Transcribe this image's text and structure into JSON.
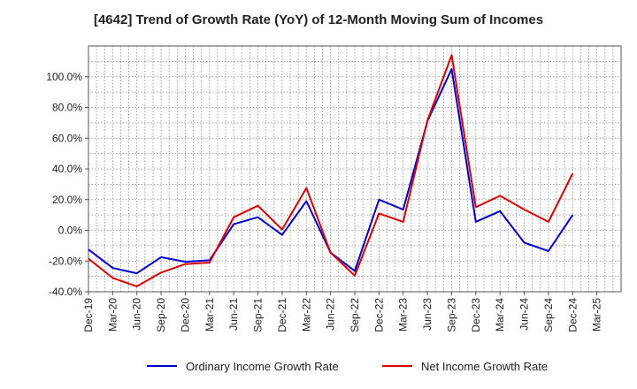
{
  "chart_data": {
    "type": "line",
    "title": "[4642]  Trend of Growth Rate (YoY) of 12-Month Moving Sum of Incomes",
    "xlabel": "",
    "ylabel": "",
    "ylim": [
      -40,
      120
    ],
    "y_ticks": [
      -40,
      -20,
      0,
      20,
      40,
      60,
      80,
      100
    ],
    "y_tick_labels": [
      "-40.0%",
      "-20.0%",
      "0.0%",
      "20.0%",
      "40.0%",
      "60.0%",
      "80.0%",
      "100.0%"
    ],
    "x_tick_labels": [
      "Dec-19",
      "Mar-20",
      "Jun-20",
      "Sep-20",
      "Dec-20",
      "Mar-21",
      "Jun-21",
      "Sep-21",
      "Dec-21",
      "Mar-22",
      "Jun-22",
      "Sep-22",
      "Dec-22",
      "Mar-23",
      "Jun-23",
      "Sep-23",
      "Dec-23",
      "Mar-24",
      "Jun-24",
      "Sep-24",
      "Dec-24",
      "Mar-25"
    ],
    "categories": [
      "Dec-19",
      "Mar-20",
      "Jun-20",
      "Sep-20",
      "Dec-20",
      "Mar-21",
      "Jun-21",
      "Sep-21",
      "Dec-21",
      "Mar-22",
      "Jun-22",
      "Sep-22",
      "Dec-22",
      "Mar-23",
      "Jun-23",
      "Sep-23",
      "Dec-23",
      "Mar-24",
      "Jun-24",
      "Sep-24",
      "Dec-24"
    ],
    "grid": true,
    "legend_position": "bottom",
    "series": [
      {
        "name": "Ordinary Income Growth Rate",
        "color": "#0000cc",
        "values": [
          -12.5,
          -24.5,
          -28,
          -17.5,
          -20.5,
          -19.5,
          4,
          8.5,
          -3,
          19,
          -14.5,
          -26.5,
          20,
          13.5,
          71,
          105,
          5.5,
          12.5,
          -8,
          -13.5,
          10
        ]
      },
      {
        "name": "Net Income Growth Rate",
        "color": "#dd0000",
        "values": [
          -18.5,
          -31,
          -36.5,
          -27.5,
          -22,
          -21,
          8.5,
          16,
          0.5,
          27.5,
          -14.5,
          -29.5,
          11,
          5.5,
          71.5,
          114,
          15,
          22.5,
          13.5,
          5.5,
          37
        ]
      }
    ]
  }
}
